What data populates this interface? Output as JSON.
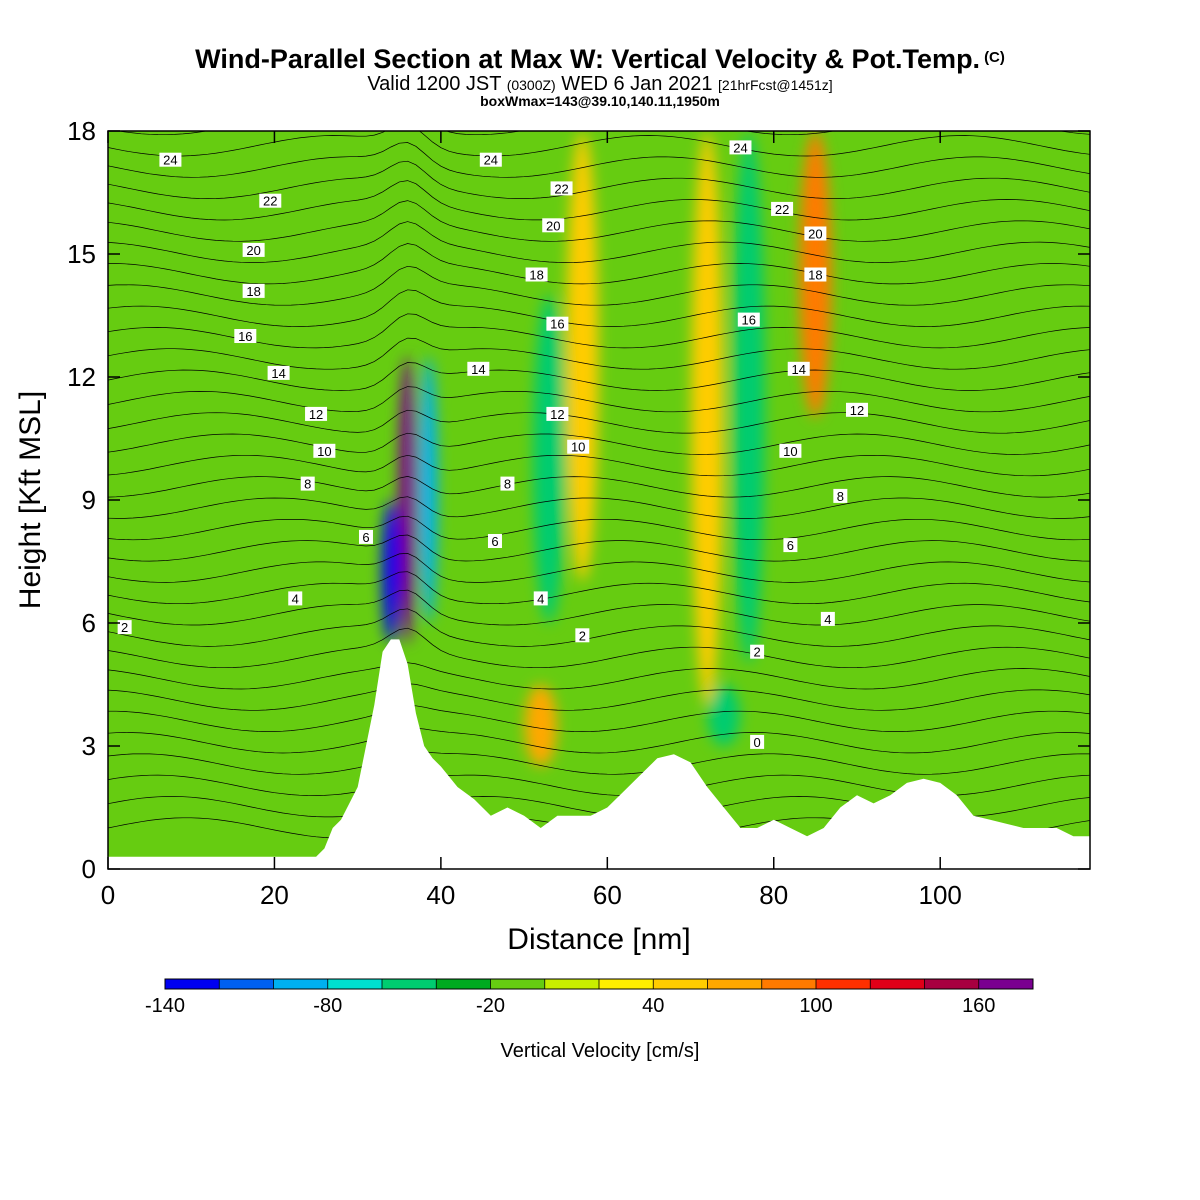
{
  "header": {
    "title": "Wind-Parallel Section at Max W: Vertical Velocity & Pot.Temp.",
    "copyright": "(C)",
    "valid_prefix": "Valid 1200 JST",
    "valid_utc": "(0300Z)",
    "valid_date": "WED 6 Jan 2021",
    "forecast": "[21hrFcst@1451z]",
    "box_info": "boxWmax=143@39.10,140.11,1950m"
  },
  "chart_data": {
    "type": "heatmap",
    "xlabel": "Distance [nm]",
    "ylabel": "Height [Kft MSL]",
    "xlim": [
      0,
      118
    ],
    "ylim": [
      0,
      18
    ],
    "x_ticks": [
      0,
      20,
      40,
      60,
      80,
      100
    ],
    "y_ticks": [
      0,
      3,
      6,
      9,
      12,
      15,
      18
    ],
    "colorbar": {
      "label": "Vertical Velocity [cm/s]",
      "tick_labels": [
        "-140",
        "-80",
        "-20",
        "40",
        "100",
        "160"
      ],
      "tick_values": [
        -140,
        -80,
        -20,
        40,
        100,
        160
      ],
      "levels": [
        -140,
        -120,
        -100,
        -80,
        -60,
        -40,
        -20,
        0,
        20,
        40,
        60,
        80,
        100,
        120,
        140,
        160,
        180
      ],
      "colors": [
        "#0000f0",
        "#0060f0",
        "#00b0f0",
        "#00e0d0",
        "#00cc70",
        "#00aa20",
        "#66cc11",
        "#c8ee00",
        "#ffee00",
        "#ffcc00",
        "#ffa800",
        "#ff7a00",
        "#ff3000",
        "#e00018",
        "#a80040",
        "#7a0090"
      ]
    },
    "background_w_cms": -10,
    "features": [
      {
        "name": "updraft-core",
        "x": 36,
        "y_range": [
          5.5,
          12.5
        ],
        "w": 160
      },
      {
        "name": "downdraft-core",
        "x": 34,
        "y_range": [
          5.5,
          9
        ],
        "w": -140
      },
      {
        "name": "downdraft-upper",
        "x": 38.5,
        "y_range": [
          6,
          12.5
        ],
        "w": -100
      },
      {
        "name": "downdraft-band",
        "x": 53,
        "y_range": [
          6,
          14
        ],
        "w": -60
      },
      {
        "name": "updraft-band",
        "x": 57,
        "y_range": [
          7,
          18
        ],
        "w": 50
      },
      {
        "name": "updraft-band",
        "x": 72,
        "y_range": [
          4,
          18
        ],
        "w": 50
      },
      {
        "name": "downdraft-band",
        "x": 77,
        "y_range": [
          5,
          18
        ],
        "w": -60
      },
      {
        "name": "updraft-band",
        "x": 85,
        "y_range": [
          11,
          18
        ],
        "w": 80
      },
      {
        "name": "updraft-low",
        "x": 52,
        "y_range": [
          2.5,
          4.5
        ],
        "w": 60
      },
      {
        "name": "downdraft-low",
        "x": 74,
        "y_range": [
          3,
          4.5
        ],
        "w": -50
      }
    ],
    "terrain": [
      [
        0,
        0.3
      ],
      [
        25,
        0.3
      ],
      [
        26,
        0.5
      ],
      [
        27,
        1
      ],
      [
        28,
        1.2
      ],
      [
        30,
        2
      ],
      [
        31,
        3
      ],
      [
        32,
        4
      ],
      [
        33,
        5.3
      ],
      [
        34,
        5.6
      ],
      [
        35,
        5.6
      ],
      [
        36,
        5
      ],
      [
        37,
        3.8
      ],
      [
        38,
        3
      ],
      [
        39,
        2.7
      ],
      [
        40,
        2.5
      ],
      [
        42,
        2
      ],
      [
        44,
        1.7
      ],
      [
        46,
        1.3
      ],
      [
        48,
        1.5
      ],
      [
        50,
        1.3
      ],
      [
        52,
        1
      ],
      [
        54,
        1.3
      ],
      [
        56,
        1.3
      ],
      [
        58,
        1.3
      ],
      [
        60,
        1.5
      ],
      [
        62,
        1.9
      ],
      [
        64,
        2.3
      ],
      [
        66,
        2.7
      ],
      [
        68,
        2.8
      ],
      [
        70,
        2.6
      ],
      [
        72,
        2
      ],
      [
        74,
        1.5
      ],
      [
        76,
        1
      ],
      [
        78,
        1
      ],
      [
        80,
        1.2
      ],
      [
        82,
        1
      ],
      [
        84,
        0.8
      ],
      [
        86,
        1
      ],
      [
        88,
        1.5
      ],
      [
        90,
        1.8
      ],
      [
        92,
        1.6
      ],
      [
        94,
        1.8
      ],
      [
        96,
        2.1
      ],
      [
        98,
        2.2
      ],
      [
        100,
        2.1
      ],
      [
        102,
        1.8
      ],
      [
        104,
        1.3
      ],
      [
        106,
        1.2
      ],
      [
        108,
        1.1
      ],
      [
        110,
        1
      ],
      [
        112,
        1
      ],
      [
        114,
        1
      ],
      [
        116,
        0.8
      ],
      [
        118,
        0.8
      ]
    ],
    "theta_contour_labels": [
      {
        "text": "24",
        "x": 7.5,
        "y": 17.3
      },
      {
        "text": "22",
        "x": 19.5,
        "y": 16.3
      },
      {
        "text": "20",
        "x": 17.5,
        "y": 15.1
      },
      {
        "text": "18",
        "x": 17.5,
        "y": 14.1
      },
      {
        "text": "16",
        "x": 16.5,
        "y": 13.0
      },
      {
        "text": "14",
        "x": 20.5,
        "y": 12.1
      },
      {
        "text": "12",
        "x": 25,
        "y": 11.1
      },
      {
        "text": "10",
        "x": 26,
        "y": 10.2
      },
      {
        "text": "8",
        "x": 24,
        "y": 9.4
      },
      {
        "text": "6",
        "x": 31,
        "y": 8.1
      },
      {
        "text": "4",
        "x": 22.5,
        "y": 6.6
      },
      {
        "text": "2",
        "x": 2,
        "y": 5.9
      },
      {
        "text": "24",
        "x": 46,
        "y": 17.3
      },
      {
        "text": "22",
        "x": 54.5,
        "y": 16.6
      },
      {
        "text": "20",
        "x": 53.5,
        "y": 15.7
      },
      {
        "text": "18",
        "x": 51.5,
        "y": 14.5
      },
      {
        "text": "16",
        "x": 54,
        "y": 13.3
      },
      {
        "text": "14",
        "x": 44.5,
        "y": 12.2
      },
      {
        "text": "12",
        "x": 54,
        "y": 11.1
      },
      {
        "text": "10",
        "x": 56.5,
        "y": 10.3
      },
      {
        "text": "8",
        "x": 48,
        "y": 9.4
      },
      {
        "text": "6",
        "x": 46.5,
        "y": 8.0
      },
      {
        "text": "4",
        "x": 52,
        "y": 6.6
      },
      {
        "text": "2",
        "x": 57,
        "y": 5.7
      },
      {
        "text": "24",
        "x": 76,
        "y": 17.6
      },
      {
        "text": "22",
        "x": 81,
        "y": 16.1
      },
      {
        "text": "20",
        "x": 85,
        "y": 15.5
      },
      {
        "text": "18",
        "x": 85,
        "y": 14.5
      },
      {
        "text": "16",
        "x": 77,
        "y": 13.4
      },
      {
        "text": "14",
        "x": 83,
        "y": 12.2
      },
      {
        "text": "12",
        "x": 90,
        "y": 11.2
      },
      {
        "text": "10",
        "x": 82,
        "y": 10.2
      },
      {
        "text": "8",
        "x": 88,
        "y": 9.1
      },
      {
        "text": "6",
        "x": 82,
        "y": 7.9
      },
      {
        "text": "4",
        "x": 86.5,
        "y": 6.1
      },
      {
        "text": "2",
        "x": 78,
        "y": 5.3
      },
      {
        "text": "0",
        "x": 78,
        "y": 3.1
      }
    ]
  }
}
